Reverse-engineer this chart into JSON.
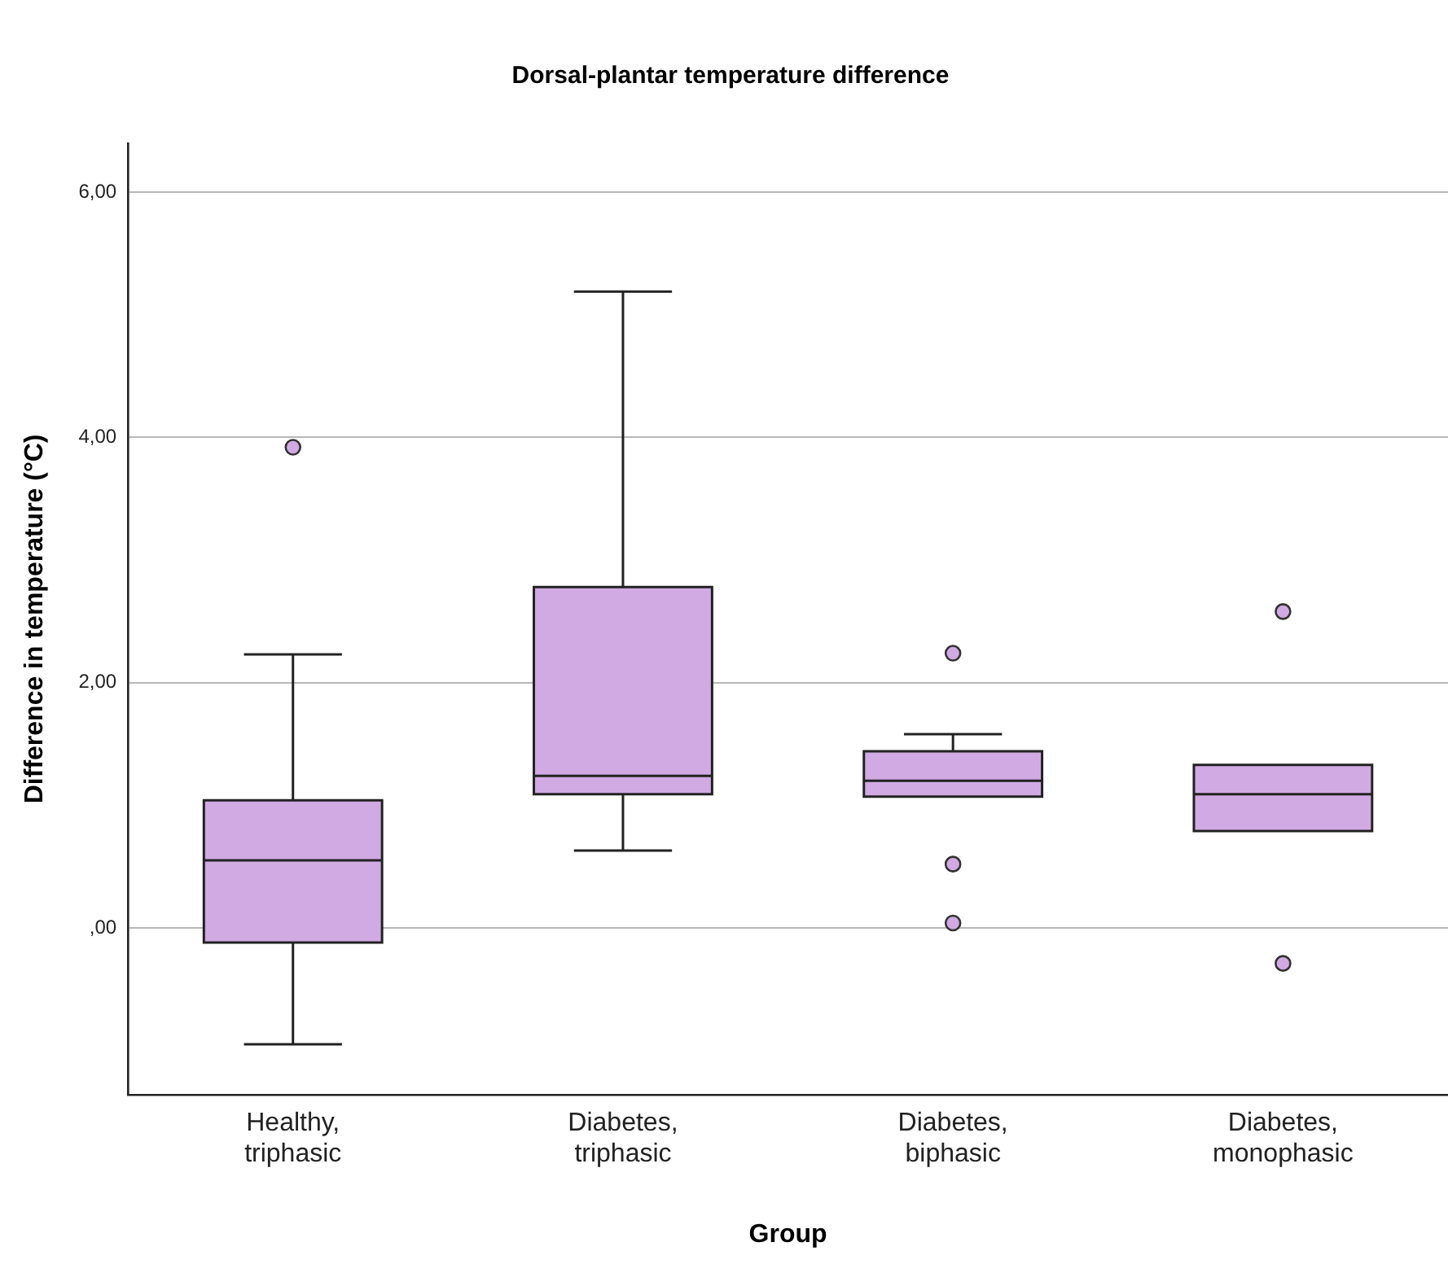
{
  "chart_data": {
    "type": "box",
    "title": "Dorsal-plantar temperature difference",
    "xlabel": "Group",
    "ylabel": "Difference in temperature (°C)",
    "categories": [
      "Healthy, triphasic",
      "Diabetes, triphasic",
      "Diabetes, biphasic",
      "Diabetes, monophasic"
    ],
    "color": "#d1aae3",
    "boxes": [
      {
        "low": -0.95,
        "q1": -0.12,
        "median": 0.55,
        "q3": 1.04,
        "high": 2.23,
        "outliers": [
          3.92
        ]
      },
      {
        "low": 0.63,
        "q1": 1.09,
        "median": 1.24,
        "q3": 2.78,
        "high": 5.19
      },
      {
        "low": 1.07,
        "q1": 1.07,
        "median": 1.2,
        "q3": 1.44,
        "high": 1.58,
        "outliers": [
          2.24,
          0.52,
          0.04
        ]
      },
      {
        "low": 0.79,
        "q1": 0.79,
        "median": 1.09,
        "q3": 1.33,
        "high": 1.33,
        "outliers": [
          2.58,
          -0.29
        ]
      }
    ],
    "ylim": [
      -1.36,
      6.4
    ],
    "yticks": [
      {
        "value": 0,
        "label": ",00"
      },
      {
        "value": 2,
        "label": "2,00"
      },
      {
        "value": 4,
        "label": "4,00"
      },
      {
        "value": 6,
        "label": "6,00"
      }
    ],
    "grid": "y",
    "legend": false,
    "marker": "circle"
  }
}
